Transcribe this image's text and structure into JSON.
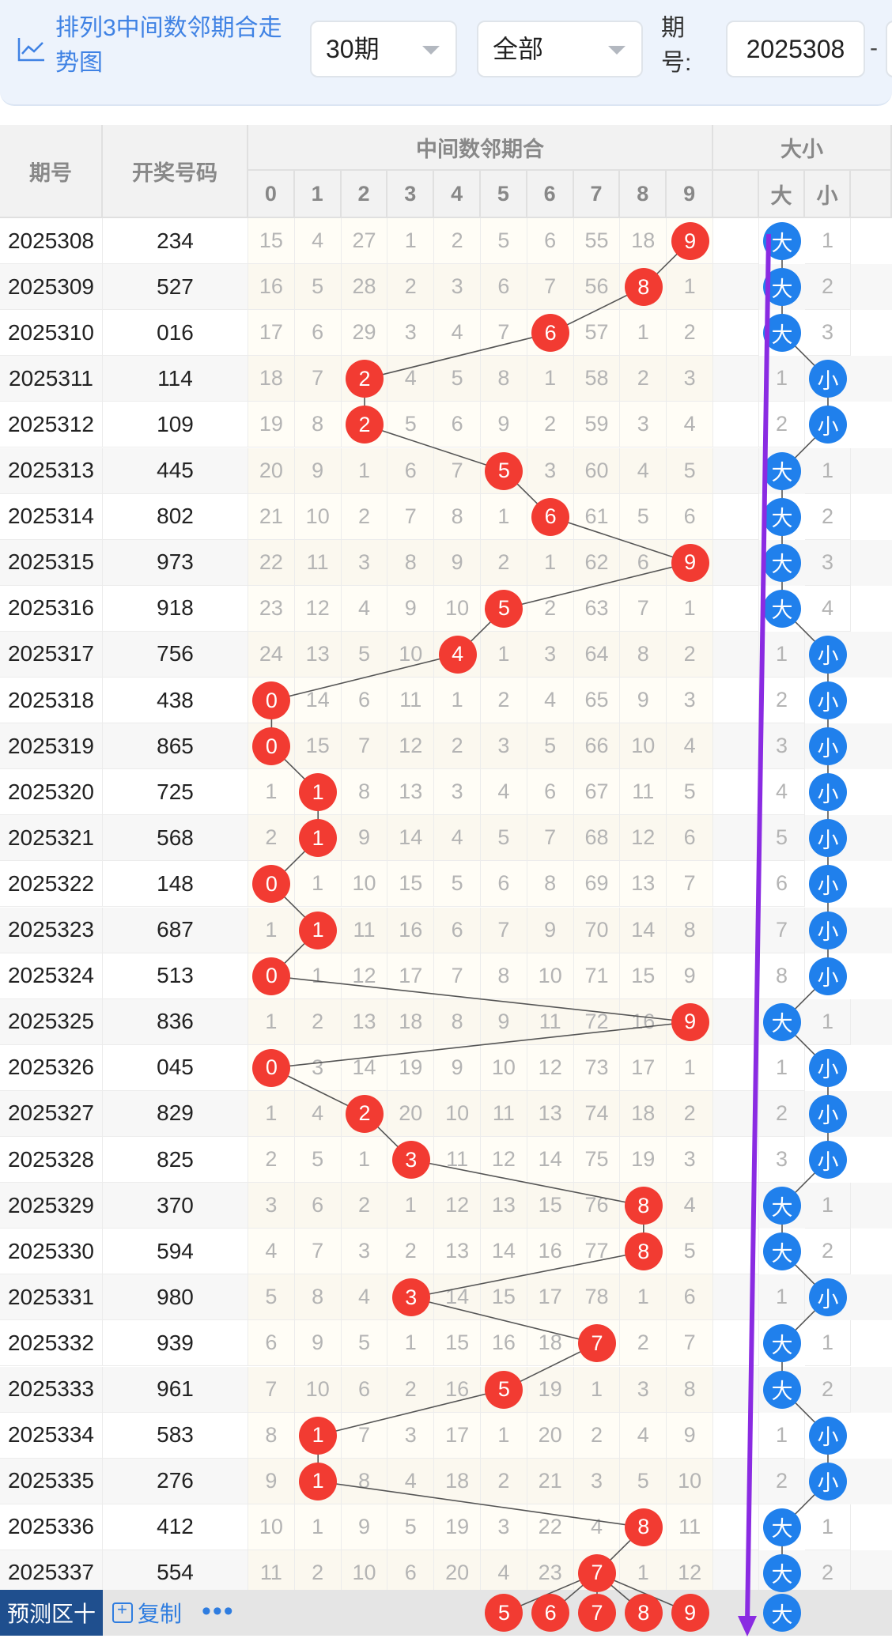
{
  "header": {
    "title": "排列3中间数邻期合走势图",
    "period_select": "30期",
    "type_select": "全部",
    "issue_label": "期号:",
    "issue_start": "2025308",
    "range_separator": "-"
  },
  "table": {
    "col_issue": "期号",
    "col_number": "开奖号码",
    "group_middle": "中间数邻期合",
    "group_size": "大小",
    "digits": [
      "0",
      "1",
      "2",
      "3",
      "4",
      "5",
      "6",
      "7",
      "8",
      "9"
    ],
    "size_labels": [
      "大",
      "小"
    ],
    "rows": [
      {
        "issue": "2025308",
        "number": "234",
        "hit": 9,
        "miss": [
          "15",
          "4",
          "27",
          "1",
          "2",
          "5",
          "6",
          "55",
          "18",
          ""
        ],
        "size": "大",
        "size_miss": "1"
      },
      {
        "issue": "2025309",
        "number": "527",
        "hit": 8,
        "miss": [
          "16",
          "5",
          "28",
          "2",
          "3",
          "6",
          "7",
          "56",
          "",
          "1"
        ],
        "size": "大",
        "size_miss": "2"
      },
      {
        "issue": "2025310",
        "number": "016",
        "hit": 6,
        "miss": [
          "17",
          "6",
          "29",
          "3",
          "4",
          "7",
          "",
          "57",
          "1",
          "2"
        ],
        "size": "大",
        "size_miss": "3"
      },
      {
        "issue": "2025311",
        "number": "114",
        "hit": 2,
        "miss": [
          "18",
          "7",
          "",
          "4",
          "5",
          "8",
          "1",
          "58",
          "2",
          "3"
        ],
        "size": "小",
        "size_miss": "1"
      },
      {
        "issue": "2025312",
        "number": "109",
        "hit": 2,
        "miss": [
          "19",
          "8",
          "",
          "5",
          "6",
          "9",
          "2",
          "59",
          "3",
          "4"
        ],
        "size": "小",
        "size_miss": "2"
      },
      {
        "issue": "2025313",
        "number": "445",
        "hit": 5,
        "miss": [
          "20",
          "9",
          "1",
          "6",
          "7",
          "",
          "3",
          "60",
          "4",
          "5"
        ],
        "size": "大",
        "size_miss": "1"
      },
      {
        "issue": "2025314",
        "number": "802",
        "hit": 6,
        "miss": [
          "21",
          "10",
          "2",
          "7",
          "8",
          "1",
          "",
          "61",
          "5",
          "6"
        ],
        "size": "大",
        "size_miss": "2"
      },
      {
        "issue": "2025315",
        "number": "973",
        "hit": 9,
        "miss": [
          "22",
          "11",
          "3",
          "8",
          "9",
          "2",
          "1",
          "62",
          "6",
          ""
        ],
        "size": "大",
        "size_miss": "3"
      },
      {
        "issue": "2025316",
        "number": "918",
        "hit": 5,
        "miss": [
          "23",
          "12",
          "4",
          "9",
          "10",
          "",
          "2",
          "63",
          "7",
          "1"
        ],
        "size": "大",
        "size_miss": "4"
      },
      {
        "issue": "2025317",
        "number": "756",
        "hit": 4,
        "miss": [
          "24",
          "13",
          "5",
          "10",
          "",
          "1",
          "3",
          "64",
          "8",
          "2"
        ],
        "size": "小",
        "size_miss": "1"
      },
      {
        "issue": "2025318",
        "number": "438",
        "hit": 0,
        "miss": [
          "",
          "14",
          "6",
          "11",
          "1",
          "2",
          "4",
          "65",
          "9",
          "3"
        ],
        "size": "小",
        "size_miss": "2"
      },
      {
        "issue": "2025319",
        "number": "865",
        "hit": 0,
        "miss": [
          "",
          "15",
          "7",
          "12",
          "2",
          "3",
          "5",
          "66",
          "10",
          "4"
        ],
        "size": "小",
        "size_miss": "3"
      },
      {
        "issue": "2025320",
        "number": "725",
        "hit": 1,
        "miss": [
          "1",
          "",
          "8",
          "13",
          "3",
          "4",
          "6",
          "67",
          "11",
          "5"
        ],
        "size": "小",
        "size_miss": "4"
      },
      {
        "issue": "2025321",
        "number": "568",
        "hit": 1,
        "miss": [
          "2",
          "",
          "9",
          "14",
          "4",
          "5",
          "7",
          "68",
          "12",
          "6"
        ],
        "size": "小",
        "size_miss": "5"
      },
      {
        "issue": "2025322",
        "number": "148",
        "hit": 0,
        "miss": [
          "",
          "1",
          "10",
          "15",
          "5",
          "6",
          "8",
          "69",
          "13",
          "7"
        ],
        "size": "小",
        "size_miss": "6"
      },
      {
        "issue": "2025323",
        "number": "687",
        "hit": 1,
        "miss": [
          "1",
          "",
          "11",
          "16",
          "6",
          "7",
          "9",
          "70",
          "14",
          "8"
        ],
        "size": "小",
        "size_miss": "7"
      },
      {
        "issue": "2025324",
        "number": "513",
        "hit": 0,
        "miss": [
          "",
          "1",
          "12",
          "17",
          "7",
          "8",
          "10",
          "71",
          "15",
          "9"
        ],
        "size": "小",
        "size_miss": "8"
      },
      {
        "issue": "2025325",
        "number": "836",
        "hit": 9,
        "miss": [
          "1",
          "2",
          "13",
          "18",
          "8",
          "9",
          "11",
          "72",
          "16",
          ""
        ],
        "size": "大",
        "size_miss": "1"
      },
      {
        "issue": "2025326",
        "number": "045",
        "hit": 0,
        "miss": [
          "",
          "3",
          "14",
          "19",
          "9",
          "10",
          "12",
          "73",
          "17",
          "1"
        ],
        "size": "小",
        "size_miss": "1"
      },
      {
        "issue": "2025327",
        "number": "829",
        "hit": 2,
        "miss": [
          "1",
          "4",
          "",
          "20",
          "10",
          "11",
          "13",
          "74",
          "18",
          "2"
        ],
        "size": "小",
        "size_miss": "2"
      },
      {
        "issue": "2025328",
        "number": "825",
        "hit": 3,
        "miss": [
          "2",
          "5",
          "1",
          "",
          "11",
          "12",
          "14",
          "75",
          "19",
          "3"
        ],
        "size": "小",
        "size_miss": "3"
      },
      {
        "issue": "2025329",
        "number": "370",
        "hit": 8,
        "miss": [
          "3",
          "6",
          "2",
          "1",
          "12",
          "13",
          "15",
          "76",
          "",
          "4"
        ],
        "size": "大",
        "size_miss": "1"
      },
      {
        "issue": "2025330",
        "number": "594",
        "hit": 8,
        "miss": [
          "4",
          "7",
          "3",
          "2",
          "13",
          "14",
          "16",
          "77",
          "",
          "5"
        ],
        "size": "大",
        "size_miss": "2"
      },
      {
        "issue": "2025331",
        "number": "980",
        "hit": 3,
        "miss": [
          "5",
          "8",
          "4",
          "",
          "14",
          "15",
          "17",
          "78",
          "1",
          "6"
        ],
        "size": "小",
        "size_miss": "1"
      },
      {
        "issue": "2025332",
        "number": "939",
        "hit": 7,
        "miss": [
          "6",
          "9",
          "5",
          "1",
          "15",
          "16",
          "18",
          "",
          "2",
          "7"
        ],
        "size": "大",
        "size_miss": "1"
      },
      {
        "issue": "2025333",
        "number": "961",
        "hit": 5,
        "miss": [
          "7",
          "10",
          "6",
          "2",
          "16",
          "",
          "19",
          "1",
          "3",
          "8"
        ],
        "size": "大",
        "size_miss": "2"
      },
      {
        "issue": "2025334",
        "number": "583",
        "hit": 1,
        "miss": [
          "8",
          "",
          "7",
          "3",
          "17",
          "1",
          "20",
          "2",
          "4",
          "9"
        ],
        "size": "小",
        "size_miss": "1"
      },
      {
        "issue": "2025335",
        "number": "276",
        "hit": 1,
        "miss": [
          "9",
          "",
          "8",
          "4",
          "18",
          "2",
          "21",
          "3",
          "5",
          "10"
        ],
        "size": "小",
        "size_miss": "2"
      },
      {
        "issue": "2025336",
        "number": "412",
        "hit": 8,
        "miss": [
          "10",
          "1",
          "9",
          "5",
          "19",
          "3",
          "22",
          "4",
          "",
          "11"
        ],
        "size": "大",
        "size_miss": "1"
      },
      {
        "issue": "2025337",
        "number": "554",
        "hit": 7,
        "miss": [
          "11",
          "2",
          "10",
          "6",
          "20",
          "4",
          "23",
          "",
          "1",
          "12"
        ],
        "size": "大",
        "size_miss": "2"
      }
    ]
  },
  "predict": {
    "label": "预测区十",
    "copy_label": "复制",
    "more_label": "•••",
    "balls": [
      "5",
      "6",
      "7",
      "8",
      "9"
    ],
    "size": "大"
  },
  "colors": {
    "red_ball": "#f23b32",
    "blue_ball": "#2080ec",
    "arrow": "#8a2be2",
    "accent": "#3f82e4"
  }
}
